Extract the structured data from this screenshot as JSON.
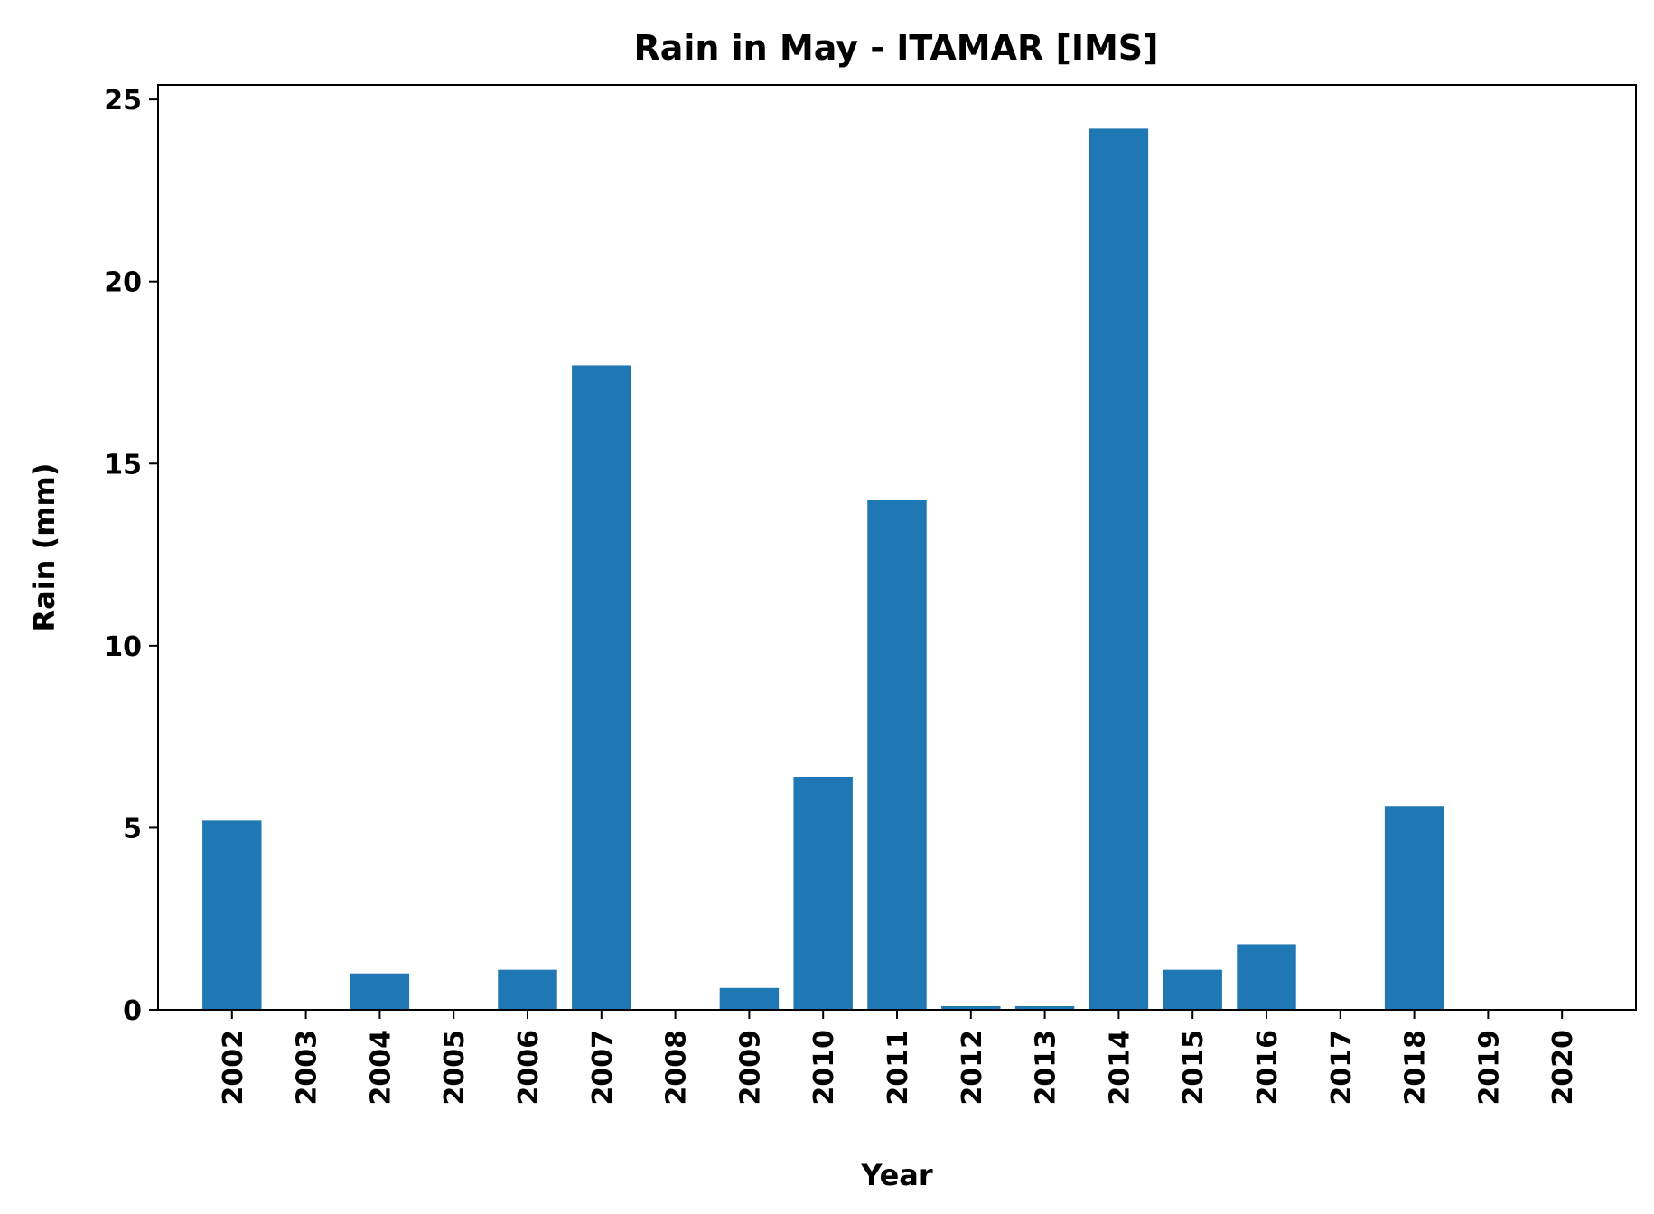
{
  "chart_data": {
    "type": "bar",
    "title": "Rain in May - ITAMAR [IMS]",
    "xlabel": "Year",
    "ylabel": "Rain (mm)",
    "categories": [
      "2002",
      "2003",
      "2004",
      "2005",
      "2006",
      "2007",
      "2008",
      "2009",
      "2010",
      "2011",
      "2012",
      "2013",
      "2014",
      "2015",
      "2016",
      "2017",
      "2018",
      "2019",
      "2020"
    ],
    "values": [
      5.2,
      0,
      1.0,
      0,
      1.1,
      17.7,
      0,
      0.6,
      6.4,
      14.0,
      0.1,
      0.1,
      24.2,
      1.1,
      1.8,
      0,
      5.6,
      0,
      0
    ],
    "ylim": [
      0,
      25.4
    ],
    "yticks": [
      0,
      5,
      10,
      15,
      20,
      25
    ],
    "bar_color": "#1f77b4",
    "grid": false,
    "legend": "none"
  }
}
